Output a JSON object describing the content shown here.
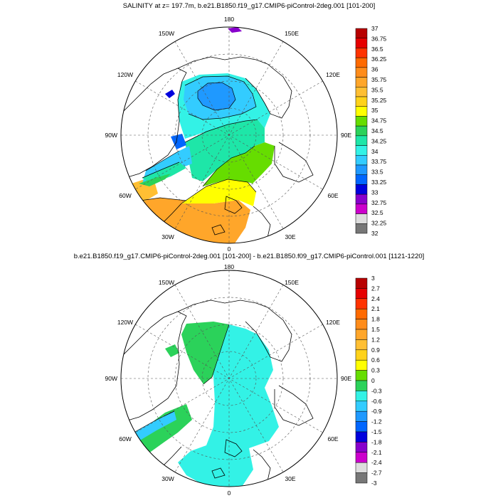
{
  "panels": [
    {
      "title": "SALINITY at z= 197.7m, b.e21.B1850.f19_g17.CMIP6-piControl-2deg.001 [101-200]",
      "lon_labels": {
        "top": "180",
        "bottom": "0",
        "left": "90W",
        "right": "90E",
        "ul": "150W",
        "ur": "150E",
        "lu": "120W",
        "ru": "120E",
        "ll": "60W",
        "rl": "60E",
        "bl": "30W",
        "br": "30E"
      },
      "colorbar": {
        "labels": [
          "37",
          "36.75",
          "36.5",
          "36.25",
          "36",
          "35.75",
          "35.5",
          "35.25",
          "35",
          "34.75",
          "34.5",
          "34.25",
          "34",
          "33.75",
          "33.5",
          "33.25",
          "33",
          "32.75",
          "32.5",
          "32.25",
          "32"
        ],
        "colors": [
          "#b80000",
          "#e60000",
          "#ff3300",
          "#ff6a00",
          "#ff8c1a",
          "#ffa62a",
          "#ffbf33",
          "#ffd21a",
          "#ffff00",
          "#66dd00",
          "#2bd25a",
          "#1ee6a8",
          "#33f2e6",
          "#33ccff",
          "#1f99ff",
          "#0066ff",
          "#0000dd",
          "#8800cc",
          "#cc00cc",
          "#dddddd",
          "#777777"
        ]
      }
    },
    {
      "title": "b.e21.B1850.f19_g17.CMIP6-piControl-2deg.001 [101-200] - b.e21.B1850.f09_g17.CMIP6-piControl.001 [1121-1220]",
      "lon_labels": {
        "top": "180",
        "bottom": "0",
        "left": "90W",
        "right": "90E",
        "ul": "150W",
        "ur": "150E",
        "lu": "120W",
        "ru": "120E",
        "ll": "60W",
        "rl": "60E",
        "bl": "30W",
        "br": "30E"
      },
      "colorbar": {
        "labels": [
          "3",
          "2.7",
          "2.4",
          "2.1",
          "1.8",
          "1.5",
          "1.2",
          "0.9",
          "0.6",
          "0.3",
          "0",
          "-0.3",
          "-0.6",
          "-0.9",
          "-1.2",
          "-1.5",
          "-1.8",
          "-2.1",
          "-2.4",
          "-2.7",
          "-3"
        ],
        "colors": [
          "#b80000",
          "#e60000",
          "#ff3300",
          "#ff6a00",
          "#ff8c1a",
          "#ffa62a",
          "#ffbf33",
          "#ffd21a",
          "#ffff00",
          "#66dd00",
          "#2bd25a",
          "#33f2e6",
          "#33ccff",
          "#1f99ff",
          "#0066ff",
          "#0000dd",
          "#8800cc",
          "#cc00cc",
          "#dddddd",
          "#777777"
        ]
      }
    }
  ]
}
